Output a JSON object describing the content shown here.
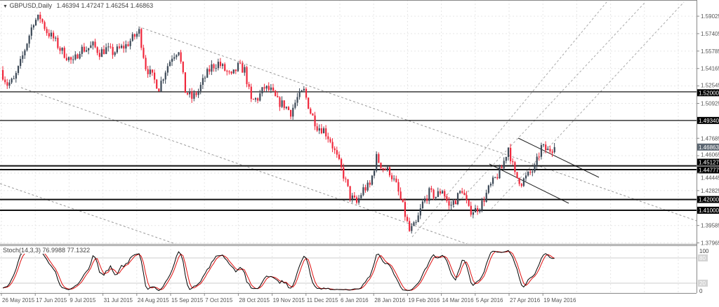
{
  "header": {
    "symbol": "GBPUSD,Daily",
    "ohlc": "1.46394 1.47247 1.46254 1.46863",
    "menu_icon": "triangle-down-icon"
  },
  "stoch_panel": {
    "label": "Stoch(14,3,3) 76.9988 77.1322",
    "axis_labels": [
      "100",
      "80",
      "20",
      "0"
    ],
    "levels": [
      80,
      20
    ]
  },
  "chart_data": {
    "type": "candlestick",
    "symbol": "GBPUSD",
    "timeframe": "Daily",
    "last_candle": {
      "open": 1.46394,
      "high": 1.47247,
      "low": 1.46254,
      "close": 1.46863
    },
    "price_ticks": [
      "1.59025",
      "1.57405",
      "1.55785",
      "1.54165",
      "1.52545",
      "1.50925",
      "1.47685",
      "1.46065",
      "1.44445",
      "1.42825",
      "1.39585",
      "1.37965"
    ],
    "ylim": [
      1.37965,
      1.59025
    ],
    "horizontal_levels": [
      "1.52000",
      "1.49340",
      "1.45127",
      "1.44777",
      "1.42000",
      "1.41000"
    ],
    "current_price": "1.46863",
    "date_labels": [
      "26 May 2015",
      "17 Jun 2015",
      "9 Jul 2015",
      "31 Jul 2015",
      "24 Aug 2015",
      "15 Sep 2015",
      "7 Oct 2015",
      "28 Oct 2015",
      "19 Nov 2015",
      "11 Dec 2015",
      "6 Jan 2016",
      "28 Jan 2016",
      "19 Feb 2016",
      "14 Mar 2016",
      "5 Apr 2016",
      "27 Apr 2016",
      "19 May 2016"
    ],
    "approx_closes": [
      1.5402,
      1.5272,
      1.5304,
      1.5467,
      1.5662,
      1.5858,
      1.589,
      1.576,
      1.5695,
      1.5597,
      1.5532,
      1.5467,
      1.5597,
      1.5597,
      1.563,
      1.5565,
      1.5597,
      1.5565,
      1.5597,
      1.563,
      1.5695,
      1.576,
      1.5434,
      1.5337,
      1.5239,
      1.5402,
      1.5532,
      1.5597,
      1.5207,
      1.5141,
      1.5207,
      1.5337,
      1.5434,
      1.5467,
      1.5402,
      1.5337,
      1.5434,
      1.5402,
      1.5109,
      1.5141,
      1.5239,
      1.5207,
      1.5109,
      1.5076,
      1.5011,
      1.5141,
      1.5207,
      1.5011,
      1.4881,
      1.4848,
      1.4751,
      1.4588,
      1.4425,
      1.423,
      1.4165,
      1.4295,
      1.4328,
      1.4588,
      1.449,
      1.4458,
      1.4328,
      1.4132,
      1.3904,
      1.3969,
      1.4165,
      1.4262,
      1.423,
      1.4295,
      1.4132,
      1.4197,
      1.4295,
      1.41,
      1.41,
      1.4165,
      1.4295,
      1.4393,
      1.449,
      1.4686,
      1.4425,
      1.436,
      1.4425,
      1.449,
      1.4686,
      1.4653,
      1.4686
    ],
    "colors": {
      "bull": "#3b4856",
      "bear": "#f0283c",
      "stoch_main": "#000000",
      "stoch_signal": "#e01010",
      "level_label_bg": "#000000",
      "price_label_bg": "#5d6873"
    },
    "grid": true
  }
}
